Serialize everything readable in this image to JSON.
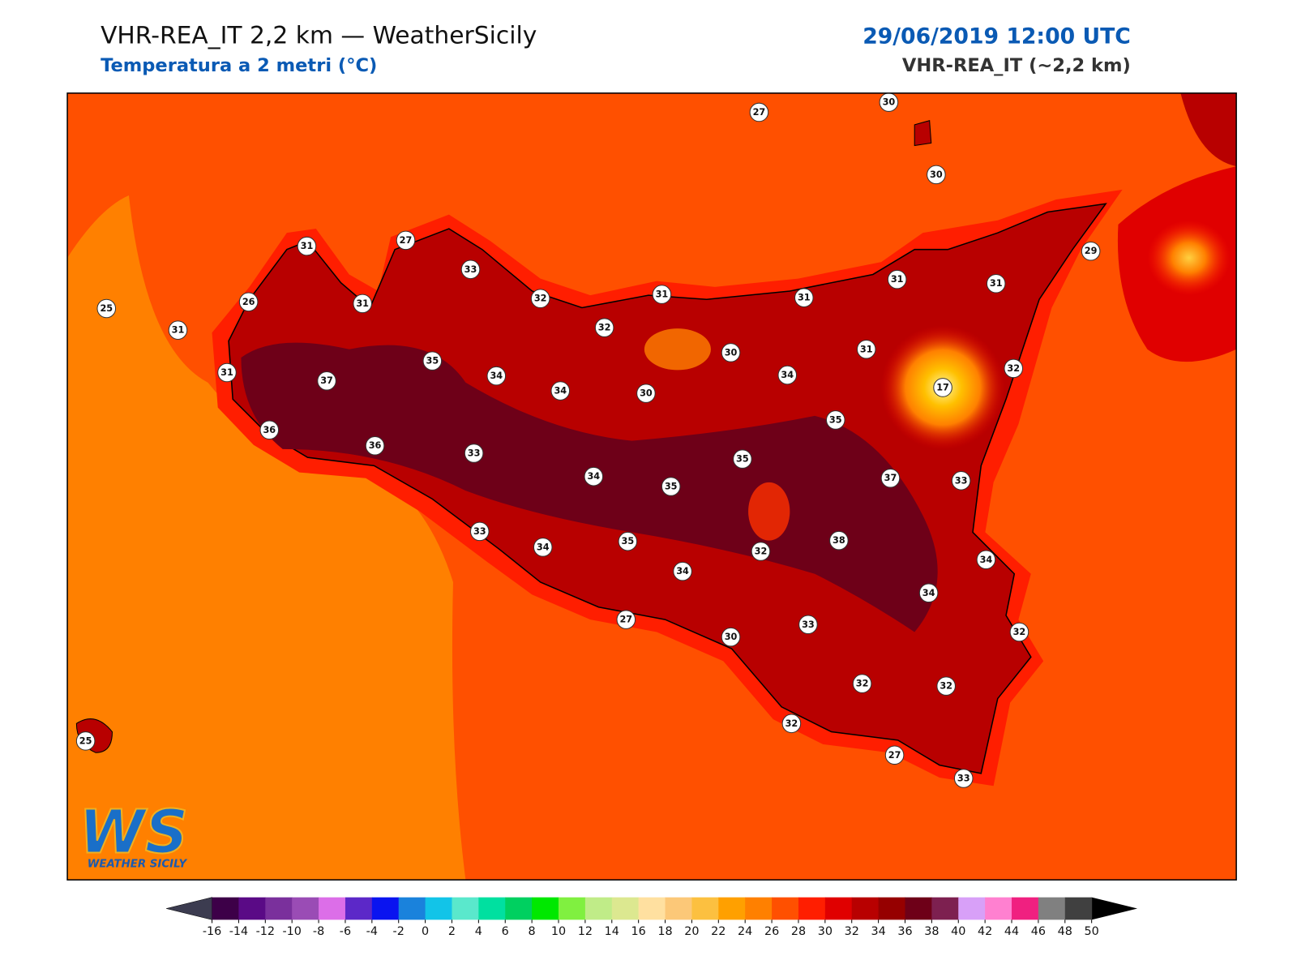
{
  "header": {
    "title": "VHR-REA_IT 2,2 km — WeatherSicily",
    "subtitle": "Temperatura a 2 metri (°C)",
    "date": "29/06/2019 12:00 UTC",
    "model": "VHR-REA_IT (~2,2 km)"
  },
  "map": {
    "stations": [
      27,
      30,
      30,
      29,
      25,
      31,
      26,
      31,
      27,
      33,
      31,
      32,
      31,
      31,
      31,
      31,
      31,
      37,
      35,
      34,
      32,
      34,
      30,
      30,
      34,
      31,
      32,
      17,
      36,
      36,
      33,
      35,
      35,
      34,
      35,
      37,
      33,
      33,
      34,
      35,
      34,
      32,
      38,
      34,
      34,
      27,
      30,
      33,
      32,
      32,
      32,
      32,
      27,
      33,
      25
    ]
  },
  "logo": {
    "letters": "WS",
    "text": "WEATHER SICILY"
  },
  "colorbar": {
    "ticks": [
      -16,
      -14,
      -12,
      -10,
      -8,
      -6,
      -4,
      -2,
      0,
      2,
      4,
      6,
      8,
      10,
      12,
      14,
      16,
      18,
      20,
      22,
      24,
      26,
      28,
      30,
      32,
      34,
      36,
      38,
      40,
      42,
      44,
      46,
      48,
      50
    ],
    "colors": [
      "#3d0048",
      "#5a0a86",
      "#7a309c",
      "#9a4cb5",
      "#dc6ee8",
      "#5c28c8",
      "#0a14f0",
      "#1a82dc",
      "#12c4e8",
      "#5ae8cc",
      "#00e0a0",
      "#00d060",
      "#00e800",
      "#80f040",
      "#c0ec88",
      "#dce890",
      "#ffe0a0",
      "#fcc878",
      "#fcc040",
      "#ffa000",
      "#ff8000",
      "#ff5000",
      "#ff1e00",
      "#e00000",
      "#b80000",
      "#960000",
      "#6e0018",
      "#7d2050",
      "#d8a0f8",
      "#ff80d0",
      "#f02080",
      "#808080",
      "#404040"
    ],
    "under": "#3c3c50",
    "over": "#000000"
  }
}
